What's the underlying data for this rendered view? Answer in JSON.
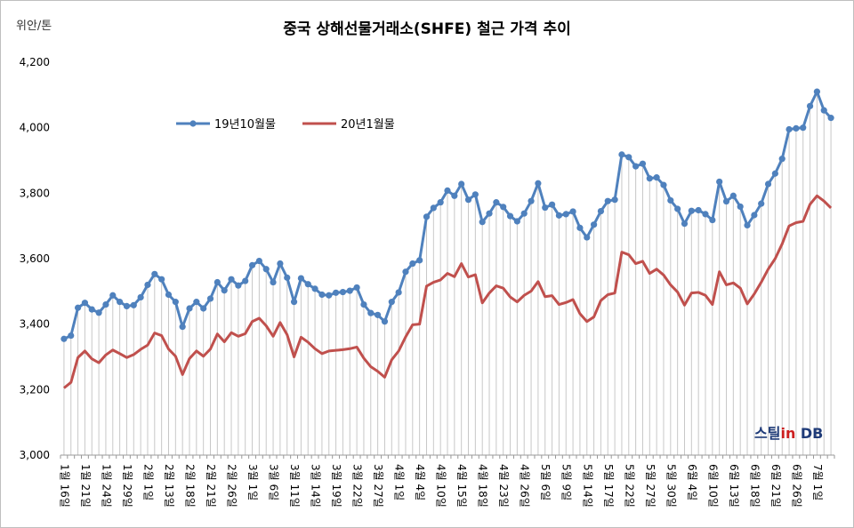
{
  "chart_data": {
    "type": "line",
    "title": "중국 상해선물거래소(SHFE) 철근 가격 추이",
    "unit_label": "위안/톤",
    "ylim": [
      3000,
      4200
    ],
    "yticks": [
      "3,000",
      "3,200",
      "3,400",
      "3,600",
      "3,800",
      "4,000",
      "4,200"
    ],
    "grid": false,
    "drop_lines": true,
    "legend_position": "top-left-inside",
    "x_tick_labels": [
      {
        "i": 0,
        "label": "1월 16일"
      },
      {
        "i": 3,
        "label": "1월 21일"
      },
      {
        "i": 6,
        "label": "1월 24일"
      },
      {
        "i": 9,
        "label": "1월 29일"
      },
      {
        "i": 12,
        "label": "2월 1일"
      },
      {
        "i": 15,
        "label": "2월 13일"
      },
      {
        "i": 18,
        "label": "2월 18일"
      },
      {
        "i": 21,
        "label": "2월 21일"
      },
      {
        "i": 24,
        "label": "2월 26일"
      },
      {
        "i": 27,
        "label": "3월 1일"
      },
      {
        "i": 30,
        "label": "3월 6일"
      },
      {
        "i": 33,
        "label": "3월 11일"
      },
      {
        "i": 36,
        "label": "3월 14일"
      },
      {
        "i": 39,
        "label": "3월 19일"
      },
      {
        "i": 42,
        "label": "3월 22일"
      },
      {
        "i": 45,
        "label": "3월 27일"
      },
      {
        "i": 48,
        "label": "4월 1일"
      },
      {
        "i": 51,
        "label": "4월 4일"
      },
      {
        "i": 54,
        "label": "4월 10일"
      },
      {
        "i": 57,
        "label": "4월 15일"
      },
      {
        "i": 60,
        "label": "4월 18일"
      },
      {
        "i": 63,
        "label": "4월 23일"
      },
      {
        "i": 66,
        "label": "4월 26일"
      },
      {
        "i": 69,
        "label": "5월 6일"
      },
      {
        "i": 72,
        "label": "5월 9일"
      },
      {
        "i": 75,
        "label": "5월 14일"
      },
      {
        "i": 78,
        "label": "5월 17일"
      },
      {
        "i": 81,
        "label": "5월 22일"
      },
      {
        "i": 84,
        "label": "5월 27일"
      },
      {
        "i": 87,
        "label": "5월 30일"
      },
      {
        "i": 90,
        "label": "6월 4일"
      },
      {
        "i": 93,
        "label": "6월 10일"
      },
      {
        "i": 96,
        "label": "6월 13일"
      },
      {
        "i": 99,
        "label": "6월 18일"
      },
      {
        "i": 102,
        "label": "6월 21일"
      },
      {
        "i": 105,
        "label": "6월 26일"
      },
      {
        "i": 108,
        "label": "7월 1일"
      }
    ],
    "series": [
      {
        "name": "19년10월물",
        "color": "#4f81bd",
        "marker": "circle",
        "values": [
          3355,
          3365,
          3450,
          3465,
          3445,
          3435,
          3460,
          3488,
          3468,
          3455,
          3458,
          3482,
          3520,
          3553,
          3537,
          3490,
          3468,
          3392,
          3448,
          3468,
          3448,
          3478,
          3528,
          3503,
          3537,
          3518,
          3532,
          3580,
          3593,
          3568,
          3528,
          3585,
          3542,
          3468,
          3540,
          3522,
          3508,
          3490,
          3488,
          3496,
          3498,
          3502,
          3512,
          3460,
          3434,
          3428,
          3408,
          3468,
          3497,
          3560,
          3585,
          3595,
          3728,
          3755,
          3772,
          3808,
          3792,
          3828,
          3780,
          3796,
          3712,
          3738,
          3772,
          3758,
          3730,
          3714,
          3738,
          3776,
          3830,
          3756,
          3765,
          3732,
          3736,
          3744,
          3694,
          3665,
          3704,
          3745,
          3776,
          3780,
          3918,
          3910,
          3882,
          3890,
          3845,
          3848,
          3825,
          3778,
          3752,
          3707,
          3746,
          3748,
          3736,
          3718,
          3835,
          3775,
          3792,
          3759,
          3702,
          3733,
          3768,
          3828,
          3860,
          3905,
          3995,
          3998,
          4000,
          4066,
          4110,
          4053,
          4030
        ]
      },
      {
        "name": "20년1월물",
        "color": "#c0504d",
        "marker": "none",
        "values": [
          3205,
          3222,
          3298,
          3318,
          3294,
          3282,
          3306,
          3321,
          3310,
          3298,
          3307,
          3323,
          3336,
          3373,
          3365,
          3324,
          3302,
          3246,
          3295,
          3318,
          3302,
          3324,
          3370,
          3346,
          3374,
          3363,
          3371,
          3408,
          3418,
          3395,
          3363,
          3405,
          3368,
          3300,
          3360,
          3345,
          3325,
          3310,
          3318,
          3320,
          3322,
          3325,
          3330,
          3296,
          3270,
          3256,
          3238,
          3291,
          3318,
          3361,
          3398,
          3400,
          3516,
          3528,
          3535,
          3555,
          3545,
          3585,
          3544,
          3551,
          3465,
          3495,
          3517,
          3510,
          3483,
          3468,
          3488,
          3501,
          3530,
          3484,
          3487,
          3460,
          3466,
          3475,
          3432,
          3408,
          3422,
          3472,
          3490,
          3495,
          3620,
          3612,
          3585,
          3592,
          3555,
          3568,
          3550,
          3520,
          3498,
          3458,
          3495,
          3497,
          3488,
          3460,
          3560,
          3520,
          3526,
          3510,
          3462,
          3492,
          3528,
          3568,
          3600,
          3645,
          3700,
          3710,
          3714,
          3766,
          3792,
          3776,
          3755
        ]
      }
    ]
  },
  "brand": {
    "part1": "스틸",
    "part2": "in",
    "part3": " DB"
  }
}
